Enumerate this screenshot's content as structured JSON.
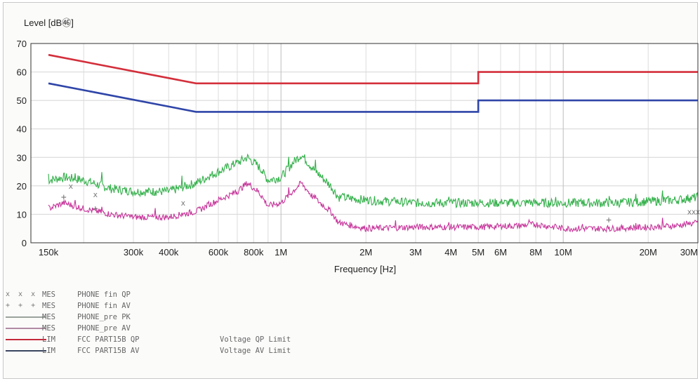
{
  "chart_data": {
    "type": "line",
    "ylabel": "Level [dB㊻]",
    "xlabel": "Frequency [Hz]",
    "xscale": "log",
    "xlim": [
      130000,
      30000000
    ],
    "ylim": [
      0,
      70
    ],
    "yticks": [
      0,
      10,
      20,
      30,
      40,
      50,
      60,
      70
    ],
    "ytick_labels": [
      "0",
      "10",
      "20",
      "30",
      "40",
      "50",
      "60",
      "70"
    ],
    "xticks": [
      150000,
      300000,
      400000,
      600000,
      800000,
      1000000,
      2000000,
      3000000,
      4000000,
      5000000,
      6000000,
      8000000,
      10000000,
      20000000,
      30000000
    ],
    "xtick_labels": [
      "150k",
      "300k",
      "400k",
      "600k",
      "800k",
      "1M",
      "2M",
      "3M",
      "4M",
      "5M",
      "6M",
      "8M",
      "10M",
      "20M",
      "30M"
    ],
    "grid": true,
    "legend_position": "bottom",
    "series": [
      {
        "name": "FCC PART15B QP",
        "kind": "LIM",
        "color": "#d32f3b",
        "x": [
          150000,
          500000,
          5000000,
          5000000,
          30000000
        ],
        "y": [
          66,
          56,
          56,
          60,
          60
        ]
      },
      {
        "name": "FCC PART15B AV",
        "kind": "LIM",
        "color": "#2f45a8",
        "x": [
          150000,
          500000,
          5000000,
          5000000,
          30000000
        ],
        "y": [
          56,
          46,
          46,
          50,
          50
        ]
      },
      {
        "name": "PHONE_pre PK",
        "kind": "MES",
        "color": "#33b04a",
        "x": [
          150000,
          170000,
          200000,
          250000,
          300000,
          400000,
          500000,
          600000,
          700000,
          760000,
          830000,
          900000,
          1000000,
          1100000,
          1180000,
          1300000,
          1500000,
          1600000,
          2000000,
          3000000,
          5000000,
          8000000,
          10000000,
          15000000,
          20000000,
          25000000,
          30000000
        ],
        "y": [
          22,
          23,
          22,
          19,
          18,
          18,
          21,
          25,
          28,
          30,
          27,
          22,
          23,
          28,
          31,
          26,
          20,
          16,
          15,
          14,
          14,
          14,
          14,
          14,
          14.5,
          15,
          16
        ]
      },
      {
        "name": "PHONE_pre AV",
        "kind": "MES",
        "color": "#c6359a",
        "x": [
          150000,
          170000,
          200000,
          250000,
          300000,
          400000,
          500000,
          600000,
          700000,
          760000,
          830000,
          900000,
          1000000,
          1100000,
          1180000,
          1300000,
          1500000,
          1600000,
          2000000,
          3000000,
          5000000,
          7000000,
          8000000,
          10000000,
          15000000,
          20000000,
          25000000,
          30000000
        ],
        "y": [
          12,
          14,
          12,
          10,
          9,
          9,
          11,
          15,
          18,
          21,
          18,
          13,
          14,
          18,
          21,
          16,
          11,
          7,
          5,
          5.5,
          5.5,
          6,
          6.5,
          5,
          5,
          5.5,
          6,
          7
        ]
      },
      {
        "name": "PHONE fin QP",
        "kind": "MES",
        "color": "#777777",
        "marker": "x",
        "x": [
          180000,
          220000,
          450000,
          28000000,
          29000000,
          30000000
        ],
        "y": [
          20,
          17,
          14,
          11,
          11,
          11
        ]
      },
      {
        "name": "PHONE fin AV",
        "kind": "MES",
        "color": "#777777",
        "marker": "+",
        "x": [
          170000,
          220000,
          14500000
        ],
        "y": [
          16,
          12,
          8
        ]
      }
    ],
    "legend": [
      {
        "mark": "x x x",
        "kind": "MES",
        "name": "PHONE fin QP",
        "desc": ""
      },
      {
        "mark": "+ + +",
        "kind": "MES",
        "name": "PHONE fin AV",
        "desc": ""
      },
      {
        "mark": "",
        "kind": "MES",
        "name": "PHONE_pre PK",
        "desc": "",
        "color": "#9aa39c"
      },
      {
        "mark": "",
        "kind": "MES",
        "name": "PHONE_pre AV",
        "desc": "",
        "color": "#b08aa3"
      },
      {
        "mark": "",
        "kind": "LIM",
        "name": "FCC PART15B QP",
        "desc": "Voltage QP Limit",
        "color": "#c42a3a"
      },
      {
        "mark": "",
        "kind": "LIM",
        "name": "FCC PART15B AV",
        "desc": "Voltage AV Limit",
        "color": "#3a4460"
      }
    ]
  }
}
